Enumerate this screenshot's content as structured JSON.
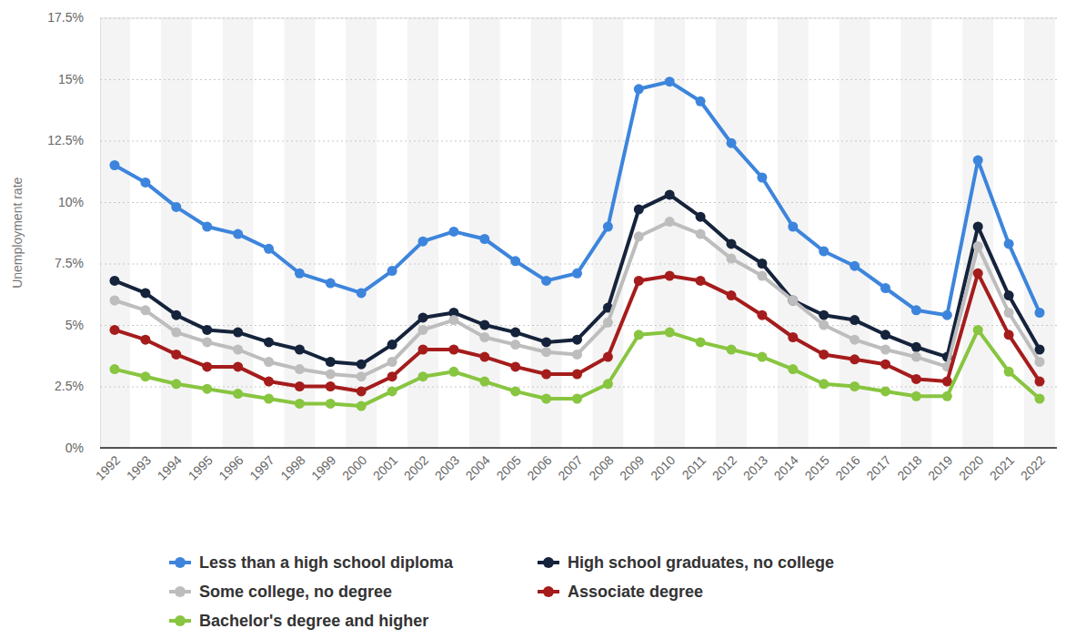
{
  "chart_data": {
    "type": "line",
    "y_label": "Unemployment rate",
    "categories": [
      "1992",
      "1993",
      "1994",
      "1995",
      "1996",
      "1997",
      "1998",
      "1999",
      "2000",
      "2001",
      "2002",
      "2003",
      "2004",
      "2005",
      "2006",
      "2007",
      "2008",
      "2009",
      "2010",
      "2011",
      "2012",
      "2013",
      "2014",
      "2015",
      "2016",
      "2017",
      "2018",
      "2019",
      "2020",
      "2021",
      "2022"
    ],
    "series": [
      {
        "name": "Less than a high school diploma",
        "color": "#3d85dc",
        "values": [
          11.5,
          10.8,
          9.8,
          9.0,
          8.7,
          8.1,
          7.1,
          6.7,
          6.3,
          7.2,
          8.4,
          8.8,
          8.5,
          7.6,
          6.8,
          7.1,
          9.0,
          14.6,
          14.9,
          14.1,
          12.4,
          11.0,
          9.0,
          8.0,
          7.4,
          6.5,
          5.6,
          5.4,
          11.7,
          8.3,
          5.5
        ]
      },
      {
        "name": "High school graduates, no college",
        "color": "#15233b",
        "values": [
          6.8,
          6.3,
          5.4,
          4.8,
          4.7,
          4.3,
          4.0,
          3.5,
          3.4,
          4.2,
          5.3,
          5.5,
          5.0,
          4.7,
          4.3,
          4.4,
          5.7,
          9.7,
          10.3,
          9.4,
          8.3,
          7.5,
          6.0,
          5.4,
          5.2,
          4.6,
          4.1,
          3.7,
          9.0,
          6.2,
          4.0
        ]
      },
      {
        "name": "Some college, no degree",
        "color": "#bdbdbd",
        "values": [
          6.0,
          5.6,
          4.7,
          4.3,
          4.0,
          3.5,
          3.2,
          3.0,
          2.9,
          3.5,
          4.8,
          5.2,
          4.5,
          4.2,
          3.9,
          3.8,
          5.1,
          8.6,
          9.2,
          8.7,
          7.7,
          7.0,
          6.0,
          5.0,
          4.4,
          4.0,
          3.7,
          3.3,
          8.2,
          5.5,
          3.5
        ]
      },
      {
        "name": "Associate degree",
        "color": "#a51c1c",
        "values": [
          4.8,
          4.4,
          3.8,
          3.3,
          3.3,
          2.7,
          2.5,
          2.5,
          2.3,
          2.9,
          4.0,
          4.0,
          3.7,
          3.3,
          3.0,
          3.0,
          3.7,
          6.8,
          7.0,
          6.8,
          6.2,
          5.4,
          4.5,
          3.8,
          3.6,
          3.4,
          2.8,
          2.7,
          7.1,
          4.6,
          2.7
        ]
      },
      {
        "name": "Bachelor's degree and higher",
        "color": "#88c540",
        "values": [
          3.2,
          2.9,
          2.6,
          2.4,
          2.2,
          2.0,
          1.8,
          1.8,
          1.7,
          2.3,
          2.9,
          3.1,
          2.7,
          2.3,
          2.0,
          2.0,
          2.6,
          4.6,
          4.7,
          4.3,
          4.0,
          3.7,
          3.2,
          2.6,
          2.5,
          2.3,
          2.1,
          2.1,
          4.8,
          3.1,
          2.0
        ]
      }
    ],
    "ylim": [
      0,
      17.5
    ],
    "yticks": [
      {
        "value": 0,
        "label": "0%"
      },
      {
        "value": 2.5,
        "label": "2.5%"
      },
      {
        "value": 5,
        "label": "5%"
      },
      {
        "value": 7.5,
        "label": "7.5%"
      },
      {
        "value": 10,
        "label": "10%"
      },
      {
        "value": 12.5,
        "label": "12.5%"
      },
      {
        "value": 15,
        "label": "15%"
      },
      {
        "value": 17.5,
        "label": "17.5%"
      }
    ],
    "grid": true,
    "legend": "bottom",
    "marker": "circle"
  }
}
